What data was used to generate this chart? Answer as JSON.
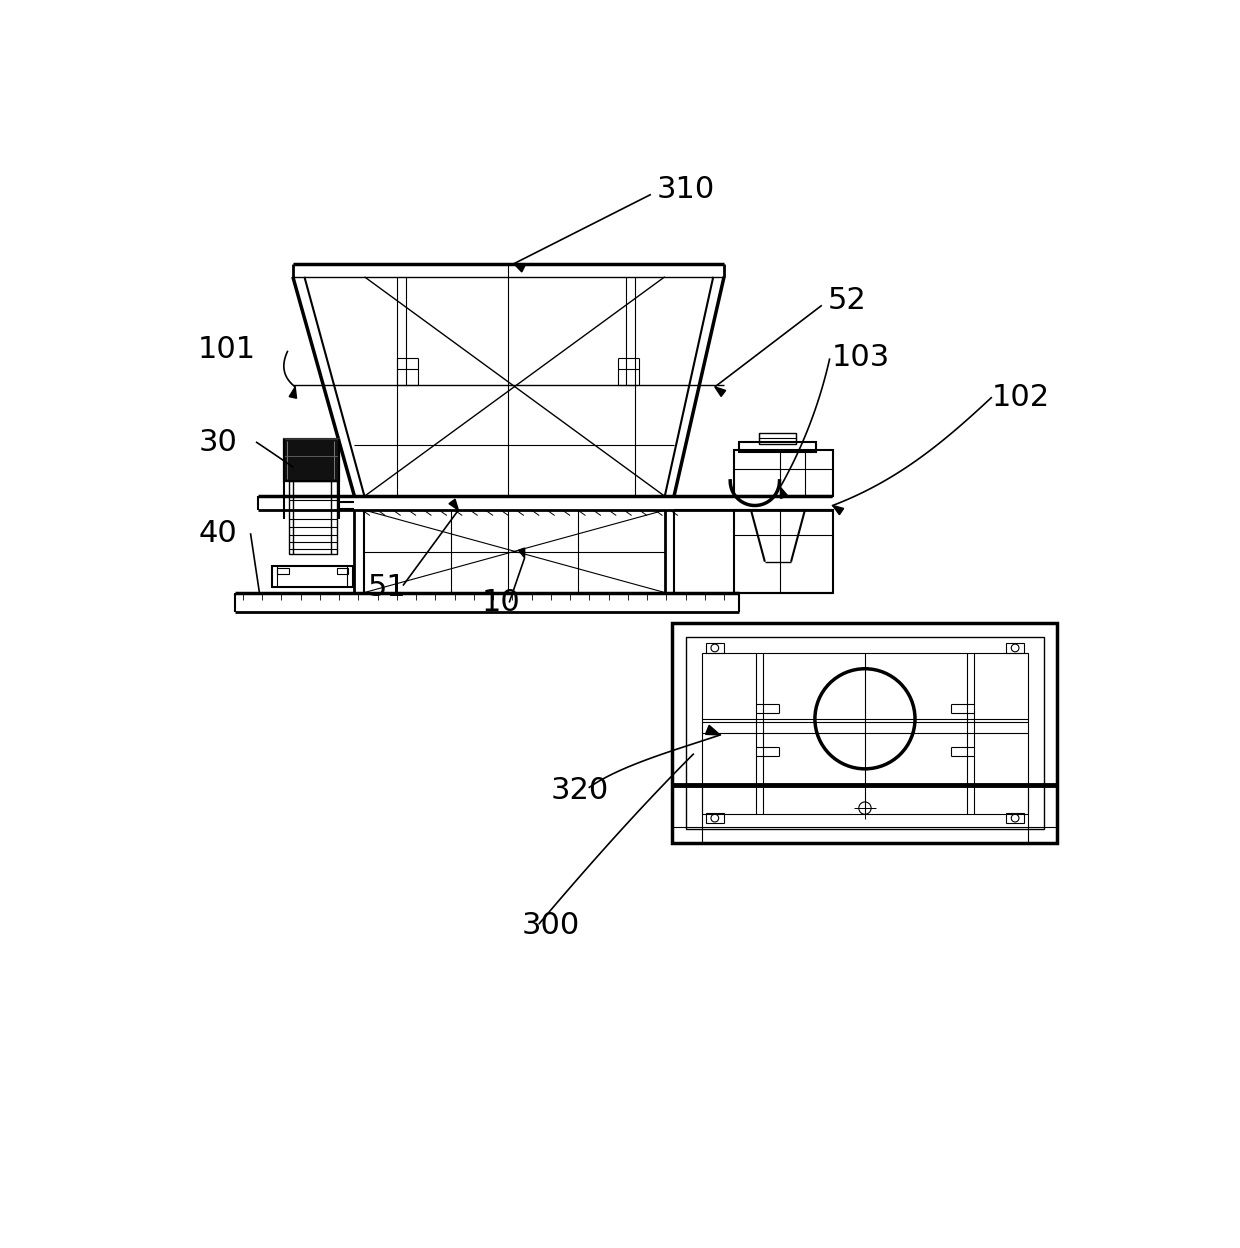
{
  "bg_color": "#ffffff",
  "line_color": "#000000",
  "figsize": [
    12.4,
    12.48
  ],
  "dpi": 100
}
